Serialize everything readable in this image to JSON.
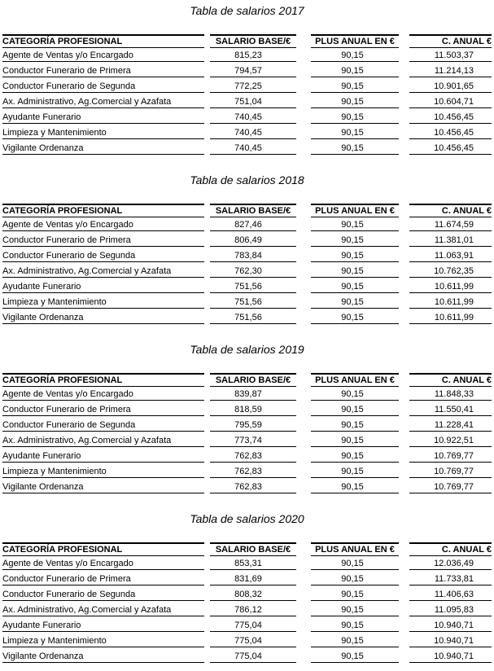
{
  "tables": [
    {
      "title": "Tabla de salarios 2017",
      "columns": [
        "CATEGORÍA PROFESIONAL",
        "SALARIO BASE/€",
        "PLUS ANUAL EN €",
        "C. ANUAL €"
      ],
      "rows": [
        [
          "Agente de Ventas y/o Encargado",
          "815,23",
          "90,15",
          "11.503,37"
        ],
        [
          "Conductor Funerario de Primera",
          "794,57",
          "90,15",
          "11.214,13"
        ],
        [
          "Conductor Funerario de Segunda",
          "772,25",
          "90,15",
          "10.901,65"
        ],
        [
          "Ax. Administrativo, Ag.Comercial y Azafata",
          "751,04",
          "90,15",
          "10.604,71"
        ],
        [
          "Ayudante Funerario",
          "740,45",
          "90,15",
          "10.456,45"
        ],
        [
          "Limpieza y Mantenimiento",
          "740,45",
          "90,15",
          "10.456,45"
        ],
        [
          "Vigilante Ordenanza",
          "740,45",
          "90,15",
          "10.456,45"
        ]
      ]
    },
    {
      "title": "Tabla de salarios 2018",
      "columns": [
        "CATEGORÍA PROFESIONAL",
        "SALARIO BASE/€",
        "PLUS ANUAL EN €",
        "C. ANUAL €"
      ],
      "rows": [
        [
          "Agente de Ventas y/o Encargado",
          "827,46",
          "90,15",
          "11.674,59"
        ],
        [
          "Conductor Funerario de Primera",
          "806,49",
          "90,15",
          "11.381,01"
        ],
        [
          "Conductor Funerario de Segunda",
          "783,84",
          "90,15",
          "11.063,91"
        ],
        [
          "Ax. Administrativo, Ag.Comercial y Azafata",
          "762,30",
          "90,15",
          "10.762,35"
        ],
        [
          "Ayudante Funerario",
          "751,56",
          "90,15",
          "10.611,99"
        ],
        [
          "Limpieza y Mantenimiento",
          "751,56",
          "90,15",
          "10.611,99"
        ],
        [
          "Vigilante Ordenanza",
          "751,56",
          "90,15",
          "10.611,99"
        ]
      ]
    },
    {
      "title": "Tabla de salarios 2019",
      "columns": [
        "CATEGORÍA PROFESIONAL",
        "SALARIO BASE/€",
        "PLUS ANUAL EN €",
        "C. ANUAL €"
      ],
      "rows": [
        [
          "Agente de Ventas y/o Encargado",
          "839,87",
          "90,15",
          "11.848,33"
        ],
        [
          "Conductor Funerario de Primera",
          "818,59",
          "90,15",
          "11.550,41"
        ],
        [
          "Conductor Funerario de Segunda",
          "795,59",
          "90,15",
          "11.228,41"
        ],
        [
          "Ax. Administrativo, Ag.Comercial y Azafata",
          "773,74",
          "90,15",
          "10.922,51"
        ],
        [
          "Ayudante Funerario",
          "762,83",
          "90,15",
          "10.769,77"
        ],
        [
          "Limpieza y Mantenimiento",
          "762,83",
          "90,15",
          "10.769,77"
        ],
        [
          "Vigilante Ordenanza",
          "762,83",
          "90,15",
          "10.769,77"
        ]
      ]
    },
    {
      "title": "Tabla de salarios 2020",
      "columns": [
        "CATEGORÍA PROFESIONAL",
        "SALARIO BASE/€",
        "PLUS ANUAL EN €",
        "C. ANUAL €"
      ],
      "rows": [
        [
          "Agente de Ventas y/o Encargado",
          "853,31",
          "90,15",
          "12.036,49"
        ],
        [
          "Conductor Funerario de Primera",
          "831,69",
          "90,15",
          "11.733,81"
        ],
        [
          "Conductor Funerario de Segunda",
          "808,32",
          "90,15",
          "11.406,63"
        ],
        [
          "Ax. Administrativo, Ag.Comercial y Azafata",
          "786,12",
          "90,15",
          "11.095,83"
        ],
        [
          "Ayudante Funerario",
          "775,04",
          "90,15",
          "10.940,71"
        ],
        [
          "Limpieza y Mantenimiento",
          "775,04",
          "90,15",
          "10.940,71"
        ],
        [
          "Vigilante Ordenanza",
          "775,04",
          "90,15",
          "10.940,71"
        ]
      ]
    }
  ]
}
